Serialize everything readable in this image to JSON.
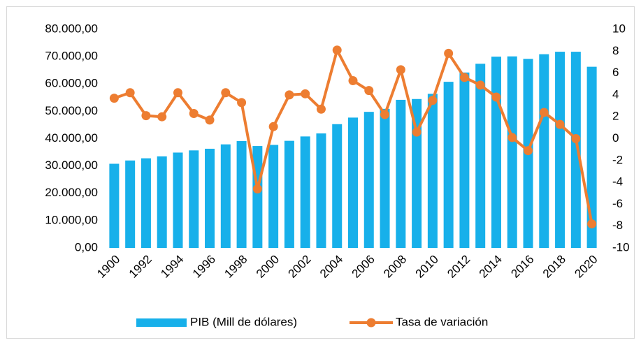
{
  "chart_data": {
    "type": "bar_line",
    "categories": [
      "1900",
      null,
      "1992",
      null,
      "1994",
      null,
      "1996",
      null,
      "1998",
      null,
      "2000",
      null,
      "2002",
      null,
      "2004",
      null,
      "2006",
      null,
      "2008",
      null,
      "2010",
      null,
      "2012",
      null,
      "2014",
      null,
      "2016",
      null,
      "2018",
      null,
      "2020"
    ],
    "series": [
      {
        "name": "PIB (Mill de dólares)",
        "type": "bar",
        "color": "#17b0ea",
        "values": [
          30800,
          32000,
          32800,
          33500,
          34900,
          35700,
          36300,
          37900,
          39100,
          37300,
          37700,
          39200,
          40800,
          41900,
          45300,
          47700,
          49800,
          50900,
          54200,
          54500,
          56400,
          60800,
          64200,
          67400,
          70000,
          70100,
          69200,
          70900,
          71800,
          71800,
          66300
        ]
      },
      {
        "name": "Tasa de variación",
        "type": "line",
        "axis": "y2",
        "color": "#ed7d31",
        "values": [
          3.7,
          4.2,
          2.1,
          2.0,
          4.2,
          2.3,
          1.7,
          4.2,
          3.3,
          -4.6,
          1.1,
          4.0,
          4.1,
          2.7,
          8.1,
          5.3,
          4.4,
          2.2,
          6.3,
          0.6,
          3.5,
          7.8,
          5.6,
          4.9,
          3.8,
          0.1,
          -1.1,
          2.4,
          1.3,
          0.0,
          -7.8
        ]
      }
    ],
    "ylim": [
      0,
      80000
    ],
    "yticks": [
      {
        "value": 0,
        "label": "0,00"
      },
      {
        "value": 10000,
        "label": "10.000,00"
      },
      {
        "value": 20000,
        "label": "20.000,00"
      },
      {
        "value": 30000,
        "label": "30.000,00"
      },
      {
        "value": 40000,
        "label": "40.000,00"
      },
      {
        "value": 50000,
        "label": "50.000,00"
      },
      {
        "value": 60000,
        "label": "60.000,00"
      },
      {
        "value": 70000,
        "label": "70.000,00"
      },
      {
        "value": 80000,
        "label": "80.000,00"
      }
    ],
    "y2lim": [
      -10,
      10
    ],
    "y2ticks": [
      -10,
      -8,
      -6,
      -4,
      -2,
      0,
      2,
      4,
      6,
      8,
      10
    ],
    "legend": "bottom"
  }
}
